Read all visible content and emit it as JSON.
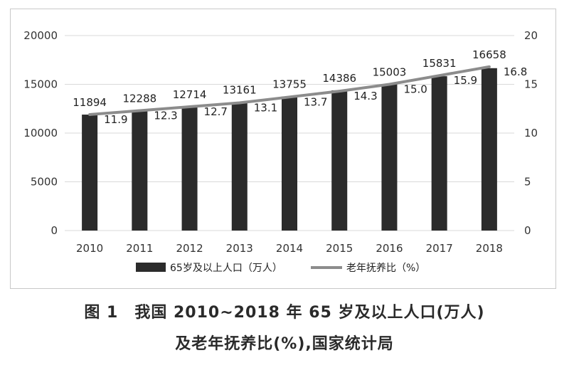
{
  "chart_data": {
    "type": "bar",
    "categories": [
      "2010",
      "2011",
      "2012",
      "2013",
      "2014",
      "2015",
      "2016",
      "2017",
      "2018"
    ],
    "series": [
      {
        "name": "65岁及以上人口（万人）",
        "type": "bar",
        "axis": "left",
        "values": [
          11894,
          12288,
          12714,
          13161,
          13755,
          14386,
          15003,
          15831,
          16658
        ],
        "labels": [
          "11894",
          "12288",
          "12714",
          "13161",
          "13755",
          "14386",
          "15003",
          "15831",
          "16658"
        ],
        "color": "#2b2b2b"
      },
      {
        "name": "老年抚养比（%）",
        "type": "line",
        "axis": "right",
        "values": [
          11.9,
          12.3,
          12.7,
          13.1,
          13.7,
          14.3,
          15.0,
          15.9,
          16.8
        ],
        "labels": [
          "11.9",
          "12.3",
          "12.7",
          "13.1",
          "13.7",
          "14.3",
          "15.0",
          "15.9",
          "16.8"
        ],
        "color": "#8c8c8c"
      }
    ],
    "y_left": {
      "min": 0,
      "max": 20000,
      "ticks": [
        "0",
        "5000",
        "10000",
        "15000",
        "20000"
      ]
    },
    "y_right": {
      "min": 0,
      "max": 20,
      "ticks": [
        "0",
        "5",
        "10",
        "15",
        "20"
      ]
    },
    "grid": true,
    "legend_position": "bottom"
  },
  "caption": {
    "line1": "图 1　我国 2010~2018 年 65 岁及以上人口(万人)",
    "line2": "及老年抚养比(%),国家统计局"
  }
}
